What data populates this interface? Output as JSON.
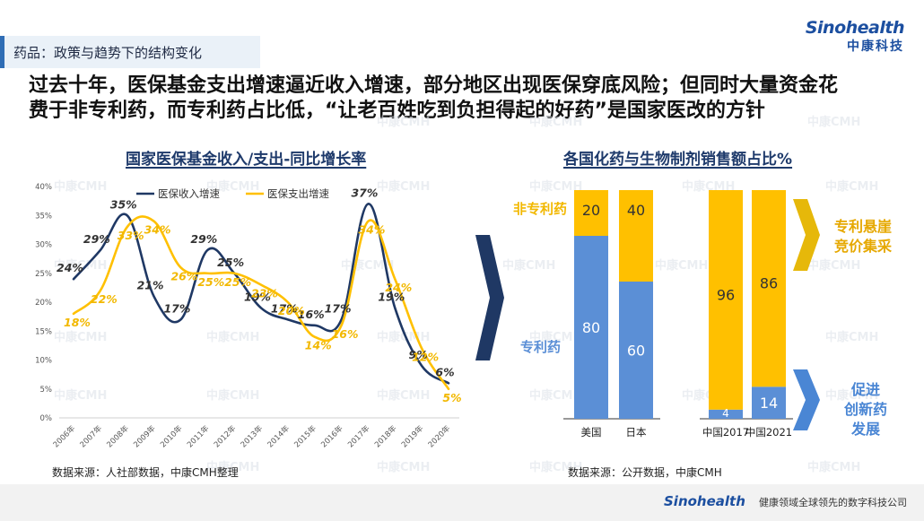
{
  "page": {
    "section_tag": "药品：政策与趋势下的结构变化",
    "logo_en": "Sinohealth",
    "logo_cn": "中康科技",
    "headline_line1": "过去十年，医保基金支出增速逼近收入增速，部分地区出现医保穿底风险；但同时大量资金花",
    "headline_line2": "费于非专利药，而专利药占比低，“让老百姓吃到负担得起的好药”是国家医改的方针",
    "footer_logo": "Sinohealth",
    "footer_text": "健康领域全球领先的数字科技公司",
    "watermark": "中康CMH"
  },
  "colors": {
    "income": "#1f3864",
    "expense": "#ffc000",
    "patent": "#5b8fd6",
    "non_patent": "#ffc000",
    "arrow_dark": "#1f3864",
    "arrow_gold": "#e6b80a",
    "arrow_blue": "#4a86d4",
    "title": "#1e3a6b"
  },
  "chart_data": [
    {
      "type": "line",
      "title": "国家医保基金收入/支出-同比增长率",
      "x": [
        "2006年",
        "2007年",
        "2008年",
        "2009年",
        "2010年",
        "2011年",
        "2012年",
        "2013年",
        "2014年",
        "2015年",
        "2016年",
        "2017年",
        "2018年",
        "2019年",
        "2020年"
      ],
      "y_tick_labels": [
        "0%",
        "5%",
        "10%",
        "15%",
        "20%",
        "25%",
        "30%",
        "35%",
        "40%"
      ],
      "ylim": [
        0,
        40
      ],
      "grid": false,
      "legend_position": "top",
      "series": [
        {
          "name": "医保收入增速",
          "values": [
            24,
            29,
            35,
            21,
            17,
            29,
            25,
            19,
            17,
            16,
            17,
            37,
            19,
            9,
            6
          ],
          "labels": [
            "24%",
            "29%",
            "35%",
            "21%",
            "17%",
            "29%",
            "25%",
            "19%",
            "17%",
            "16%",
            "17%",
            "37%",
            "19%",
            "9%",
            "6%"
          ]
        },
        {
          "name": "医保支出增速",
          "values": [
            18,
            22,
            33,
            34,
            26,
            25,
            25,
            23,
            20,
            14,
            16,
            34,
            24,
            12,
            5
          ],
          "labels": [
            "18%",
            "22%",
            "33%",
            "34%",
            "26%",
            "25%",
            "25%",
            "23%",
            "20%",
            "14%",
            "16%",
            "34%",
            "24%",
            "12%",
            "5%"
          ]
        }
      ],
      "source": "数据来源：人社部数据，中康CMH整理"
    },
    {
      "type": "bar",
      "stacked": true,
      "title": "各国化药与生物制剂销售额占比%",
      "categories": [
        "美国",
        "日本",
        "中国2017",
        "中国2021"
      ],
      "series": [
        {
          "name": "专利药",
          "values": [
            80,
            60,
            4,
            14
          ],
          "labels": [
            "80",
            "60",
            "4",
            "14"
          ]
        },
        {
          "name": "非专利药",
          "values": [
            20,
            40,
            96,
            86
          ],
          "labels": [
            "20",
            "40",
            "96",
            "86"
          ]
        }
      ],
      "annotations": {
        "top": [
          "专利悬崖",
          "竞价集采"
        ],
        "bottom": [
          "促进",
          "创新药",
          "发展"
        ]
      },
      "source": "数据来源：公开数据，中康CMH"
    }
  ]
}
